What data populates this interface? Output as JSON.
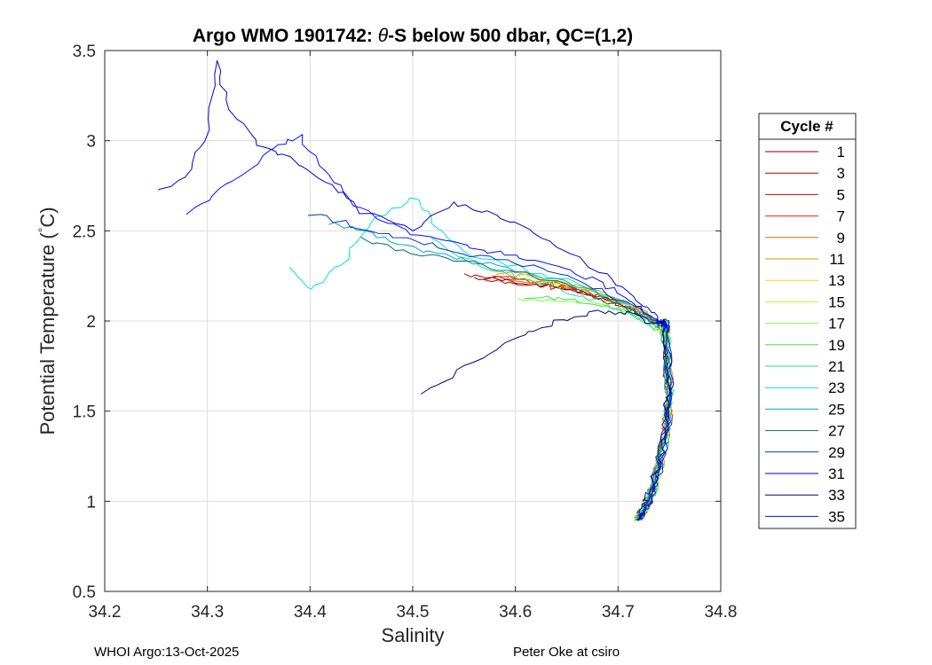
{
  "chart_data": {
    "type": "line",
    "title_prefix": "Argo WMO 1901742: ",
    "title_theta": "θ",
    "title_suffix": "-S below 500 dbar,  QC=(1,2)",
    "xlabel": "Salinity",
    "ylabel_main": "Potential Temperature (",
    "ylabel_degree": "°",
    "ylabel_unit": "C)",
    "xlim": [
      34.2,
      34.8
    ],
    "ylim": [
      0.5,
      3.5
    ],
    "xticks": [
      34.2,
      34.3,
      34.4,
      34.5,
      34.6,
      34.7,
      34.8
    ],
    "xtick_labels": [
      "34.2",
      "34.3",
      "34.4",
      "34.5",
      "34.6",
      "34.7",
      "34.8"
    ],
    "yticks": [
      0.5,
      1,
      1.5,
      2,
      2.5,
      3,
      3.5
    ],
    "ytick_labels": [
      "0.5",
      "1",
      "1.5",
      "2",
      "2.5",
      "3",
      "3.5"
    ],
    "grid": true,
    "legend_title": "Cycle #",
    "legend_position": "right",
    "legend_entries": [
      {
        "label": "1",
        "color": "#800000"
      },
      {
        "label": "3",
        "color": "#aa0000"
      },
      {
        "label": "5",
        "color": "#d40000"
      },
      {
        "label": "7",
        "color": "#ff2000"
      },
      {
        "label": "9",
        "color": "#ff6000"
      },
      {
        "label": "11",
        "color": "#d9a000"
      },
      {
        "label": "13",
        "color": "#e8e000"
      },
      {
        "label": "15",
        "color": "#c8f020"
      },
      {
        "label": "17",
        "color": "#80ff40"
      },
      {
        "label": "19",
        "color": "#40e050"
      },
      {
        "label": "21",
        "color": "#20e0a0"
      },
      {
        "label": "23",
        "color": "#00e0e0"
      },
      {
        "label": "25",
        "color": "#00a8c8"
      },
      {
        "label": "27",
        "color": "#007070"
      },
      {
        "label": "29",
        "color": "#0030c0"
      },
      {
        "label": "31",
        "color": "#0000d0"
      },
      {
        "label": "33",
        "color": "#000080"
      },
      {
        "label": "35",
        "color": "#0010ff"
      }
    ],
    "deep_limb": [
      [
        34.745,
        2.0
      ],
      [
        34.748,
        1.8
      ],
      [
        34.75,
        1.6
      ],
      [
        34.747,
        1.4
      ],
      [
        34.74,
        1.2
      ],
      [
        34.733,
        1.05
      ],
      [
        34.725,
        0.95
      ],
      [
        34.72,
        0.9
      ]
    ],
    "series": [
      {
        "name": "1",
        "color": "#800000",
        "points": [
          [
            34.56,
            2.24
          ],
          [
            34.6,
            2.22
          ],
          [
            34.64,
            2.19
          ],
          [
            34.68,
            2.14
          ],
          [
            34.71,
            2.08
          ],
          [
            34.735,
            2.0
          ]
        ]
      },
      {
        "name": "3",
        "color": "#aa0000",
        "points": [
          [
            34.55,
            2.25
          ],
          [
            34.59,
            2.23
          ],
          [
            34.63,
            2.2
          ],
          [
            34.67,
            2.15
          ],
          [
            34.7,
            2.09
          ],
          [
            34.73,
            2.01
          ]
        ]
      },
      {
        "name": "5",
        "color": "#d40000",
        "points": [
          [
            34.57,
            2.23
          ],
          [
            34.61,
            2.21
          ],
          [
            34.65,
            2.18
          ],
          [
            34.69,
            2.13
          ],
          [
            34.72,
            2.06
          ],
          [
            34.74,
            1.98
          ]
        ]
      },
      {
        "name": "7",
        "color": "#ff2000",
        "points": [
          [
            34.58,
            2.25
          ],
          [
            34.62,
            2.22
          ],
          [
            34.66,
            2.18
          ],
          [
            34.69,
            2.12
          ],
          [
            34.72,
            2.05
          ],
          [
            34.745,
            1.95
          ]
        ]
      },
      {
        "name": "9",
        "color": "#ff6000",
        "points": [
          [
            34.59,
            2.24
          ],
          [
            34.63,
            2.21
          ],
          [
            34.67,
            2.16
          ],
          [
            34.7,
            2.1
          ],
          [
            34.73,
            2.03
          ],
          [
            34.745,
            1.96
          ]
        ]
      },
      {
        "name": "11",
        "color": "#d9a000",
        "points": [
          [
            34.58,
            2.27
          ],
          [
            34.62,
            2.24
          ],
          [
            34.66,
            2.19
          ],
          [
            34.7,
            2.12
          ],
          [
            34.73,
            2.04
          ],
          [
            34.748,
            1.94
          ]
        ]
      },
      {
        "name": "13",
        "color": "#e8e000",
        "points": [
          [
            34.6,
            2.26
          ],
          [
            34.64,
            2.22
          ],
          [
            34.68,
            2.16
          ],
          [
            34.71,
            2.09
          ],
          [
            34.735,
            2.01
          ],
          [
            34.75,
            1.92
          ]
        ]
      },
      {
        "name": "15",
        "color": "#c8f020",
        "points": [
          [
            34.61,
            2.24
          ],
          [
            34.65,
            2.2
          ],
          [
            34.69,
            2.14
          ],
          [
            34.72,
            2.07
          ],
          [
            34.74,
            1.99
          ],
          [
            34.752,
            1.9
          ]
        ]
      },
      {
        "name": "17",
        "color": "#80ff40",
        "points": [
          [
            34.6,
            2.12
          ],
          [
            34.64,
            2.12
          ],
          [
            34.68,
            2.1
          ],
          [
            34.71,
            2.05
          ],
          [
            34.735,
            1.98
          ],
          [
            34.748,
            1.9
          ]
        ]
      },
      {
        "name": "19",
        "color": "#40e050",
        "points": [
          [
            34.61,
            2.14
          ],
          [
            34.65,
            2.12
          ],
          [
            34.69,
            2.08
          ],
          [
            34.72,
            2.02
          ],
          [
            34.74,
            1.95
          ],
          [
            34.748,
            1.88
          ]
        ]
      },
      {
        "name": "21",
        "color": "#20e0a0",
        "points": [
          [
            34.52,
            2.45
          ],
          [
            34.56,
            2.32
          ],
          [
            34.6,
            2.24
          ],
          [
            34.64,
            2.18
          ],
          [
            34.68,
            2.12
          ],
          [
            34.71,
            2.05
          ],
          [
            34.735,
            1.96
          ]
        ]
      },
      {
        "name": "23",
        "color": "#00e0e0",
        "points": [
          [
            34.38,
            2.3
          ],
          [
            34.4,
            2.18
          ],
          [
            34.43,
            2.32
          ],
          [
            34.46,
            2.55
          ],
          [
            34.5,
            2.69
          ],
          [
            34.52,
            2.55
          ],
          [
            34.55,
            2.38
          ],
          [
            34.6,
            2.3
          ],
          [
            34.65,
            2.22
          ],
          [
            34.7,
            2.12
          ],
          [
            34.73,
            2.02
          ]
        ]
      },
      {
        "name": "25",
        "color": "#00a8c8",
        "points": [
          [
            34.42,
            2.55
          ],
          [
            34.46,
            2.48
          ],
          [
            34.5,
            2.4
          ],
          [
            34.55,
            2.34
          ],
          [
            34.6,
            2.28
          ],
          [
            34.65,
            2.21
          ],
          [
            34.69,
            2.13
          ],
          [
            34.72,
            2.05
          ],
          [
            34.74,
            1.97
          ]
        ]
      },
      {
        "name": "27",
        "color": "#007070",
        "points": [
          [
            34.45,
            2.45
          ],
          [
            34.5,
            2.38
          ],
          [
            34.55,
            2.33
          ],
          [
            34.6,
            2.27
          ],
          [
            34.65,
            2.2
          ],
          [
            34.69,
            2.12
          ],
          [
            34.72,
            2.04
          ],
          [
            34.74,
            1.96
          ]
        ]
      },
      {
        "name": "29",
        "color": "#0030c0",
        "points": [
          [
            34.4,
            2.6
          ],
          [
            34.45,
            2.52
          ],
          [
            34.5,
            2.44
          ],
          [
            34.55,
            2.38
          ],
          [
            34.6,
            2.32
          ],
          [
            34.65,
            2.25
          ],
          [
            34.69,
            2.16
          ],
          [
            34.72,
            2.07
          ],
          [
            34.742,
            1.98
          ]
        ]
      },
      {
        "name": "31",
        "color": "#0000d0",
        "points": [
          [
            34.25,
            2.72
          ],
          [
            34.28,
            2.8
          ],
          [
            34.3,
            3.05
          ],
          [
            34.31,
            3.43
          ],
          [
            34.32,
            3.18
          ],
          [
            34.35,
            2.98
          ],
          [
            34.38,
            2.9
          ],
          [
            34.42,
            2.75
          ],
          [
            34.45,
            2.6
          ],
          [
            34.5,
            2.5
          ],
          [
            34.54,
            2.65
          ],
          [
            34.58,
            2.6
          ],
          [
            34.62,
            2.48
          ],
          [
            34.66,
            2.35
          ],
          [
            34.7,
            2.2
          ],
          [
            34.73,
            2.07
          ],
          [
            34.745,
            1.98
          ]
        ]
      },
      {
        "name": "33",
        "color": "#000080",
        "points": [
          [
            34.51,
            1.6
          ],
          [
            34.55,
            1.75
          ],
          [
            34.6,
            1.9
          ],
          [
            34.64,
            2.0
          ],
          [
            34.68,
            2.05
          ],
          [
            34.71,
            2.04
          ],
          [
            34.735,
            1.98
          ]
        ]
      },
      {
        "name": "35",
        "color": "#0010ff",
        "points": [
          [
            34.28,
            2.6
          ],
          [
            34.32,
            2.75
          ],
          [
            34.36,
            2.95
          ],
          [
            34.39,
            3.02
          ],
          [
            34.42,
            2.8
          ],
          [
            34.45,
            2.62
          ],
          [
            34.5,
            2.48
          ],
          [
            34.55,
            2.42
          ],
          [
            34.6,
            2.36
          ],
          [
            34.64,
            2.3
          ],
          [
            34.68,
            2.22
          ],
          [
            34.71,
            2.12
          ],
          [
            34.735,
            2.02
          ],
          [
            34.748,
            1.94
          ]
        ]
      }
    ]
  },
  "footer": {
    "left": "WHOI Argo:13-Oct-2025",
    "right": "Peter Oke at csiro"
  }
}
